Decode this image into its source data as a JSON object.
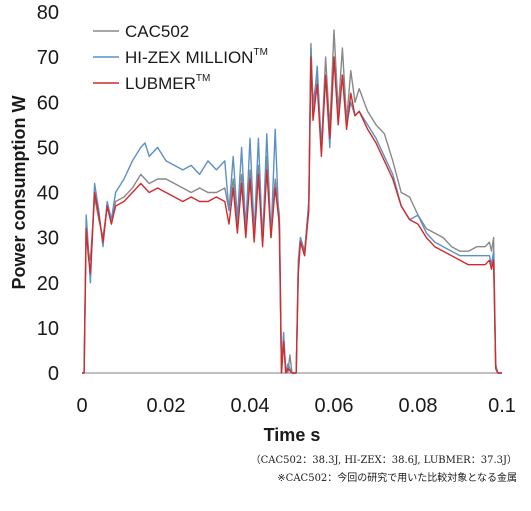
{
  "chart_data": {
    "type": "line",
    "xlabel": "Time s",
    "ylabel": "Power consumption W",
    "xlim": [
      0,
      0.1
    ],
    "ylim": [
      0,
      80
    ],
    "xticks": [
      {
        "value": 0,
        "label": "0"
      },
      {
        "value": 0.02,
        "label": "0.02"
      },
      {
        "value": 0.04,
        "label": "0.04"
      },
      {
        "value": 0.06,
        "label": "0.06"
      },
      {
        "value": 0.08,
        "label": "0.08"
      },
      {
        "value": 0.1,
        "label": "0.1"
      }
    ],
    "yticks": [
      {
        "value": 0,
        "label": "0"
      },
      {
        "value": 10,
        "label": "10"
      },
      {
        "value": 20,
        "label": "20"
      },
      {
        "value": 30,
        "label": "30"
      },
      {
        "value": 40,
        "label": "40"
      },
      {
        "value": 50,
        "label": "50"
      },
      {
        "value": 60,
        "label": "60"
      },
      {
        "value": 70,
        "label": "70"
      },
      {
        "value": 80,
        "label": "80"
      }
    ],
    "grid": false,
    "legend_position": "top-left",
    "series": [
      {
        "name": "CAC502",
        "name_sup": "",
        "color": "#888888",
        "points": [
          [
            0,
            0
          ],
          [
            0.0005,
            0
          ],
          [
            0.001,
            33
          ],
          [
            0.0015,
            27
          ],
          [
            0.002,
            25
          ],
          [
            0.003,
            39
          ],
          [
            0.004,
            34
          ],
          [
            0.005,
            30
          ],
          [
            0.006,
            37
          ],
          [
            0.007,
            33
          ],
          [
            0.008,
            38
          ],
          [
            0.01,
            39
          ],
          [
            0.012,
            41
          ],
          [
            0.014,
            44
          ],
          [
            0.016,
            42
          ],
          [
            0.018,
            43
          ],
          [
            0.02,
            43
          ],
          [
            0.022,
            42
          ],
          [
            0.024,
            41
          ],
          [
            0.026,
            40
          ],
          [
            0.028,
            41
          ],
          [
            0.03,
            40
          ],
          [
            0.032,
            40
          ],
          [
            0.034,
            41
          ],
          [
            0.035,
            36
          ],
          [
            0.036,
            43
          ],
          [
            0.037,
            33
          ],
          [
            0.038,
            44
          ],
          [
            0.039,
            32
          ],
          [
            0.04,
            45
          ],
          [
            0.041,
            31
          ],
          [
            0.042,
            46
          ],
          [
            0.043,
            30
          ],
          [
            0.044,
            48
          ],
          [
            0.045,
            31
          ],
          [
            0.046,
            43
          ],
          [
            0.047,
            35
          ],
          [
            0.0475,
            0
          ],
          [
            0.048,
            8
          ],
          [
            0.0485,
            1
          ],
          [
            0.049,
            0
          ],
          [
            0.0495,
            4
          ],
          [
            0.05,
            0
          ],
          [
            0.051,
            0
          ],
          [
            0.0515,
            24
          ],
          [
            0.052,
            30
          ],
          [
            0.053,
            27
          ],
          [
            0.054,
            38
          ],
          [
            0.0545,
            73
          ],
          [
            0.055,
            60
          ],
          [
            0.056,
            66
          ],
          [
            0.057,
            50
          ],
          [
            0.058,
            70
          ],
          [
            0.059,
            54
          ],
          [
            0.06,
            76
          ],
          [
            0.061,
            58
          ],
          [
            0.062,
            72
          ],
          [
            0.063,
            56
          ],
          [
            0.064,
            67
          ],
          [
            0.065,
            60
          ],
          [
            0.066,
            63
          ],
          [
            0.068,
            58
          ],
          [
            0.07,
            55
          ],
          [
            0.072,
            53
          ],
          [
            0.074,
            47
          ],
          [
            0.076,
            40
          ],
          [
            0.078,
            39
          ],
          [
            0.08,
            35
          ],
          [
            0.082,
            32
          ],
          [
            0.084,
            31
          ],
          [
            0.086,
            30
          ],
          [
            0.088,
            28
          ],
          [
            0.09,
            27
          ],
          [
            0.092,
            27
          ],
          [
            0.094,
            28
          ],
          [
            0.096,
            28
          ],
          [
            0.097,
            29
          ],
          [
            0.0975,
            27
          ],
          [
            0.098,
            30
          ],
          [
            0.0985,
            2
          ],
          [
            0.099,
            0
          ],
          [
            0.1,
            0
          ]
        ]
      },
      {
        "name": "HI-ZEX MILLION",
        "name_sup": "TM",
        "color": "#5b91c6",
        "points": [
          [
            0,
            0
          ],
          [
            0.0005,
            0
          ],
          [
            0.001,
            35
          ],
          [
            0.0015,
            28
          ],
          [
            0.002,
            20
          ],
          [
            0.003,
            42
          ],
          [
            0.004,
            36
          ],
          [
            0.005,
            28
          ],
          [
            0.006,
            38
          ],
          [
            0.007,
            34
          ],
          [
            0.008,
            40
          ],
          [
            0.01,
            43
          ],
          [
            0.012,
            47
          ],
          [
            0.014,
            50
          ],
          [
            0.015,
            51
          ],
          [
            0.016,
            48
          ],
          [
            0.018,
            50
          ],
          [
            0.02,
            47
          ],
          [
            0.022,
            46
          ],
          [
            0.024,
            45
          ],
          [
            0.026,
            46
          ],
          [
            0.028,
            44
          ],
          [
            0.03,
            47
          ],
          [
            0.032,
            45
          ],
          [
            0.034,
            47
          ],
          [
            0.035,
            36
          ],
          [
            0.036,
            48
          ],
          [
            0.037,
            34
          ],
          [
            0.038,
            50
          ],
          [
            0.039,
            32
          ],
          [
            0.04,
            52
          ],
          [
            0.041,
            31
          ],
          [
            0.042,
            52
          ],
          [
            0.043,
            29
          ],
          [
            0.044,
            53
          ],
          [
            0.045,
            30
          ],
          [
            0.046,
            54
          ],
          [
            0.047,
            30
          ],
          [
            0.0475,
            0
          ],
          [
            0.048,
            9
          ],
          [
            0.0485,
            0
          ],
          [
            0.049,
            2
          ],
          [
            0.05,
            0
          ],
          [
            0.051,
            0
          ],
          [
            0.0515,
            25
          ],
          [
            0.052,
            30
          ],
          [
            0.053,
            26
          ],
          [
            0.054,
            38
          ],
          [
            0.0545,
            72
          ],
          [
            0.055,
            57
          ],
          [
            0.056,
            68
          ],
          [
            0.057,
            50
          ],
          [
            0.058,
            66
          ],
          [
            0.059,
            50
          ],
          [
            0.06,
            70
          ],
          [
            0.061,
            56
          ],
          [
            0.062,
            66
          ],
          [
            0.063,
            55
          ],
          [
            0.064,
            60
          ],
          [
            0.065,
            57
          ],
          [
            0.066,
            58
          ],
          [
            0.068,
            55
          ],
          [
            0.07,
            52
          ],
          [
            0.072,
            48
          ],
          [
            0.074,
            44
          ],
          [
            0.076,
            37
          ],
          [
            0.078,
            34
          ],
          [
            0.08,
            35
          ],
          [
            0.082,
            31
          ],
          [
            0.084,
            29
          ],
          [
            0.086,
            28
          ],
          [
            0.088,
            27
          ],
          [
            0.09,
            26
          ],
          [
            0.092,
            26
          ],
          [
            0.094,
            26
          ],
          [
            0.096,
            26
          ],
          [
            0.097,
            26
          ],
          [
            0.0975,
            24
          ],
          [
            0.098,
            27
          ],
          [
            0.0985,
            1
          ],
          [
            0.099,
            0
          ],
          [
            0.1,
            0
          ]
        ]
      },
      {
        "name": "LUBMER",
        "name_sup": "TM",
        "color": "#d42a2a",
        "points": [
          [
            0,
            0
          ],
          [
            0.0005,
            0
          ],
          [
            0.001,
            32
          ],
          [
            0.0015,
            26
          ],
          [
            0.002,
            22
          ],
          [
            0.003,
            40
          ],
          [
            0.004,
            35
          ],
          [
            0.005,
            29
          ],
          [
            0.006,
            37
          ],
          [
            0.007,
            33
          ],
          [
            0.008,
            37
          ],
          [
            0.01,
            38
          ],
          [
            0.012,
            40
          ],
          [
            0.014,
            42
          ],
          [
            0.016,
            40
          ],
          [
            0.018,
            41
          ],
          [
            0.02,
            40
          ],
          [
            0.022,
            39
          ],
          [
            0.024,
            38
          ],
          [
            0.026,
            39
          ],
          [
            0.028,
            38
          ],
          [
            0.03,
            38
          ],
          [
            0.032,
            39
          ],
          [
            0.034,
            38
          ],
          [
            0.035,
            33
          ],
          [
            0.036,
            41
          ],
          [
            0.037,
            31
          ],
          [
            0.038,
            42
          ],
          [
            0.039,
            30
          ],
          [
            0.04,
            43
          ],
          [
            0.041,
            29
          ],
          [
            0.042,
            44
          ],
          [
            0.043,
            28
          ],
          [
            0.044,
            45
          ],
          [
            0.045,
            30
          ],
          [
            0.046,
            41
          ],
          [
            0.047,
            33
          ],
          [
            0.0475,
            0
          ],
          [
            0.048,
            7
          ],
          [
            0.0485,
            0
          ],
          [
            0.049,
            1
          ],
          [
            0.05,
            0
          ],
          [
            0.051,
            0
          ],
          [
            0.0515,
            22
          ],
          [
            0.052,
            29
          ],
          [
            0.053,
            26
          ],
          [
            0.054,
            36
          ],
          [
            0.0545,
            70
          ],
          [
            0.055,
            56
          ],
          [
            0.056,
            64
          ],
          [
            0.057,
            48
          ],
          [
            0.058,
            66
          ],
          [
            0.059,
            52
          ],
          [
            0.06,
            70
          ],
          [
            0.061,
            55
          ],
          [
            0.062,
            66
          ],
          [
            0.063,
            54
          ],
          [
            0.064,
            62
          ],
          [
            0.065,
            57
          ],
          [
            0.066,
            58
          ],
          [
            0.068,
            54
          ],
          [
            0.07,
            51
          ],
          [
            0.072,
            47
          ],
          [
            0.074,
            43
          ],
          [
            0.076,
            37
          ],
          [
            0.078,
            34
          ],
          [
            0.08,
            33
          ],
          [
            0.082,
            30
          ],
          [
            0.084,
            28
          ],
          [
            0.086,
            27
          ],
          [
            0.088,
            26
          ],
          [
            0.09,
            25
          ],
          [
            0.092,
            24
          ],
          [
            0.094,
            24
          ],
          [
            0.096,
            24
          ],
          [
            0.097,
            25
          ],
          [
            0.0975,
            23
          ],
          [
            0.098,
            25
          ],
          [
            0.0985,
            1
          ],
          [
            0.099,
            0
          ],
          [
            0.1,
            0
          ]
        ]
      }
    ]
  },
  "notes": {
    "energy_values": "（CAC502：38.3J, HI-ZEX：38.6J, LUBMER：37.3J）",
    "comparison_note": "※CAC502：今回の研究で用いた比較対象となる金属"
  }
}
